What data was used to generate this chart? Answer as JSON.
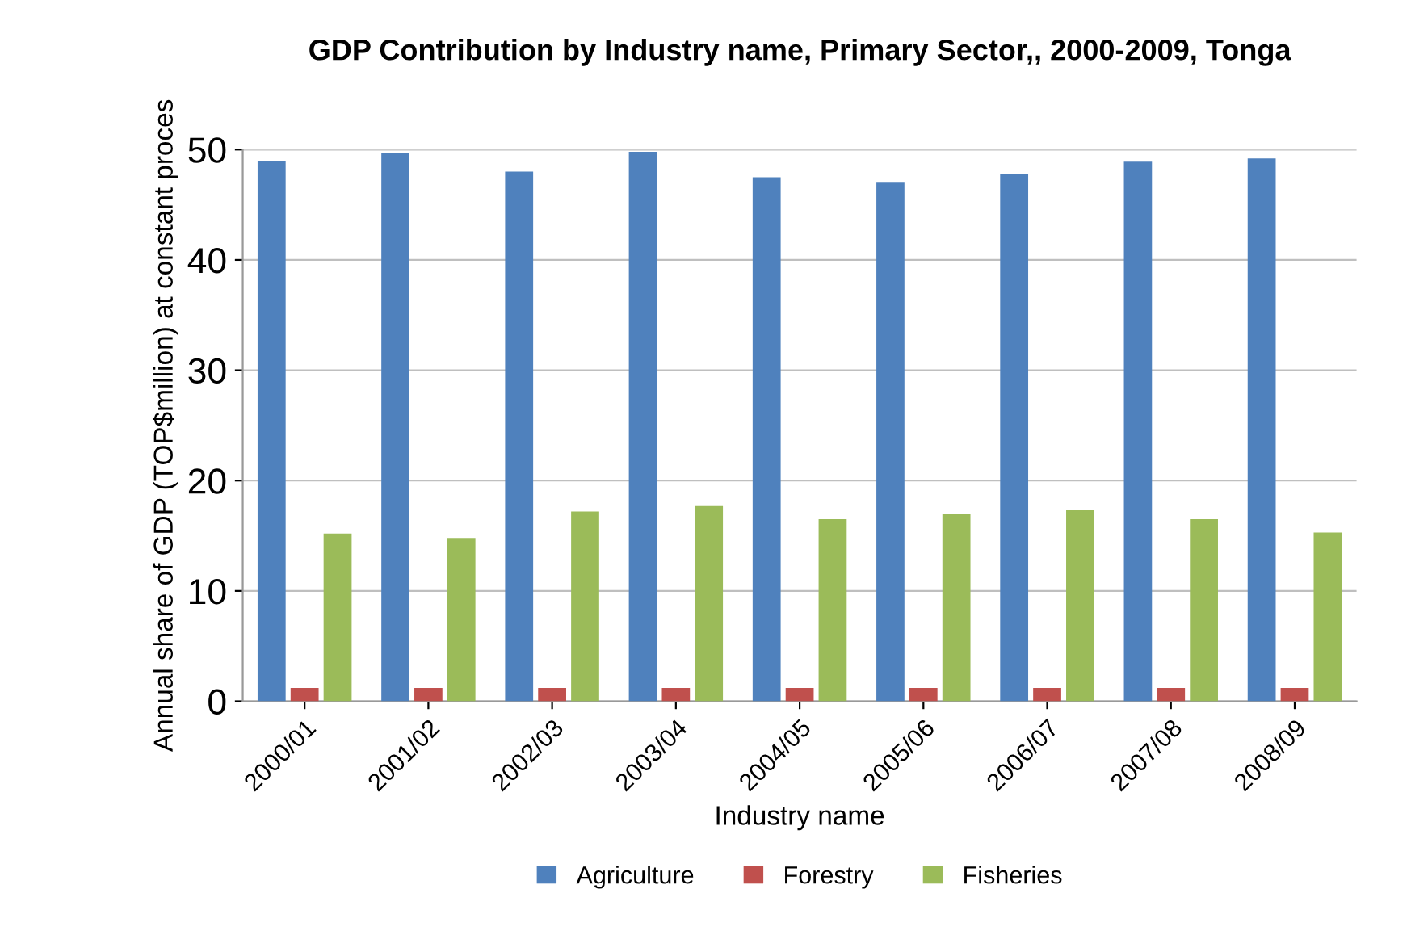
{
  "chart_data": {
    "type": "bar",
    "title": "GDP Contribution by Industry name, Primary Sector,, 2000-2009, Tonga",
    "xlabel": "Industry name",
    "ylabel": "Annual share of GDP (TOP$million) at constant proces",
    "categories": [
      "2000/01",
      "2001/02",
      "2002/03",
      "2003/04",
      "2004/05",
      "2005/06",
      "2006/07",
      "2007/08",
      "2008/09"
    ],
    "series": [
      {
        "name": "Agriculture",
        "color": "#4f81bd",
        "values": [
          49,
          49.7,
          48,
          49.8,
          47.5,
          47,
          47.8,
          48.9,
          49.2
        ]
      },
      {
        "name": "Forestry",
        "color": "#c0504d",
        "values": [
          1.2,
          1.2,
          1.2,
          1.2,
          1.2,
          1.2,
          1.2,
          1.2,
          1.2
        ]
      },
      {
        "name": "Fisheries",
        "color": "#9bbb59",
        "values": [
          15.2,
          14.8,
          17.2,
          17.7,
          16.5,
          17,
          17.3,
          16.5,
          15.3
        ]
      }
    ],
    "ylim": [
      0,
      50
    ],
    "yticks": [
      0,
      10,
      20,
      30,
      40,
      50
    ],
    "grid": "y",
    "legend": "bottom"
  }
}
